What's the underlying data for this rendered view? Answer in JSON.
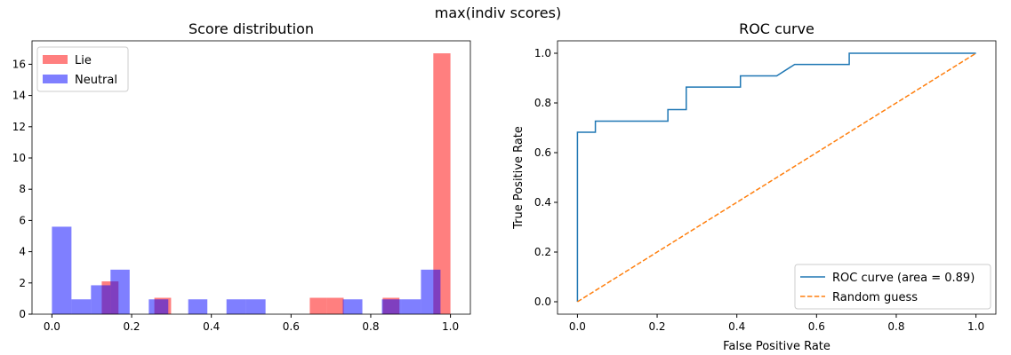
{
  "suptitle": "max(indiv scores)",
  "chart_data": [
    {
      "type": "bar",
      "subtype": "histogram-density",
      "title": "Score distribution",
      "xlabel": "",
      "ylabel": "",
      "xlim": [
        -0.05,
        1.05
      ],
      "ylim": [
        0,
        17.5
      ],
      "xticks": [
        "0.0",
        "0.2",
        "0.4",
        "0.6",
        "0.8",
        "1.0"
      ],
      "xtick_values": [
        0,
        0.2,
        0.4,
        0.6,
        0.8,
        1.0
      ],
      "yticks": [
        "0",
        "2",
        "4",
        "6",
        "8",
        "10",
        "12",
        "14",
        "16"
      ],
      "ytick_values": [
        0,
        2,
        4,
        6,
        8,
        10,
        12,
        14,
        16
      ],
      "legend_position": "upper-left",
      "series": [
        {
          "name": "Lie",
          "color": "#ff0000",
          "alpha": 0.5,
          "bins": [
            [
              0.125,
              0.167,
              2.1
            ],
            [
              0.257,
              0.299,
              1.05
            ],
            [
              0.647,
              0.69,
              1.05
            ],
            [
              0.69,
              0.732,
              1.05
            ],
            [
              0.83,
              0.872,
              1.05
            ],
            [
              0.957,
              1.0,
              16.7
            ]
          ]
        },
        {
          "name": "Neutral",
          "color": "#0000ff",
          "alpha": 0.5,
          "bins": [
            [
              0.0,
              0.049,
              5.6
            ],
            [
              0.049,
              0.098,
              0.95
            ],
            [
              0.098,
              0.147,
              1.85
            ],
            [
              0.147,
              0.195,
              2.85
            ],
            [
              0.243,
              0.292,
              0.95
            ],
            [
              0.342,
              0.39,
              0.95
            ],
            [
              0.438,
              0.487,
              0.95
            ],
            [
              0.487,
              0.536,
              0.95
            ],
            [
              0.73,
              0.779,
              0.95
            ],
            [
              0.828,
              0.877,
              0.95
            ],
            [
              0.877,
              0.926,
              0.95
            ],
            [
              0.926,
              0.975,
              2.85
            ]
          ]
        }
      ]
    },
    {
      "type": "line",
      "title": "ROC curve",
      "xlabel": "False Positive Rate",
      "ylabel": "True Positive Rate",
      "xlim": [
        -0.05,
        1.05
      ],
      "ylim": [
        -0.05,
        1.05
      ],
      "xticks": [
        "0.0",
        "0.2",
        "0.4",
        "0.6",
        "0.8",
        "1.0"
      ],
      "xtick_values": [
        0,
        0.2,
        0.4,
        0.6,
        0.8,
        1.0
      ],
      "yticks": [
        "0.0",
        "0.2",
        "0.4",
        "0.6",
        "0.8",
        "1.0"
      ],
      "ytick_values": [
        0,
        0.2,
        0.4,
        0.6,
        0.8,
        1.0
      ],
      "legend_position": "lower-right",
      "series": [
        {
          "name": "ROC curve (area = 0.89)",
          "color": "#1f77b4",
          "style": "solid",
          "x": [
            0,
            0,
            0.045,
            0.045,
            0.227,
            0.227,
            0.273,
            0.273,
            0.409,
            0.409,
            0.5,
            0.545,
            0.682,
            0.682,
            1
          ],
          "y": [
            0,
            0.682,
            0.682,
            0.727,
            0.727,
            0.773,
            0.773,
            0.864,
            0.864,
            0.909,
            0.909,
            0.955,
            0.955,
            1,
            1
          ]
        },
        {
          "name": "Random guess",
          "color": "#ff7f0e",
          "style": "dashed",
          "x": [
            0,
            1
          ],
          "y": [
            0,
            1
          ]
        }
      ]
    }
  ]
}
